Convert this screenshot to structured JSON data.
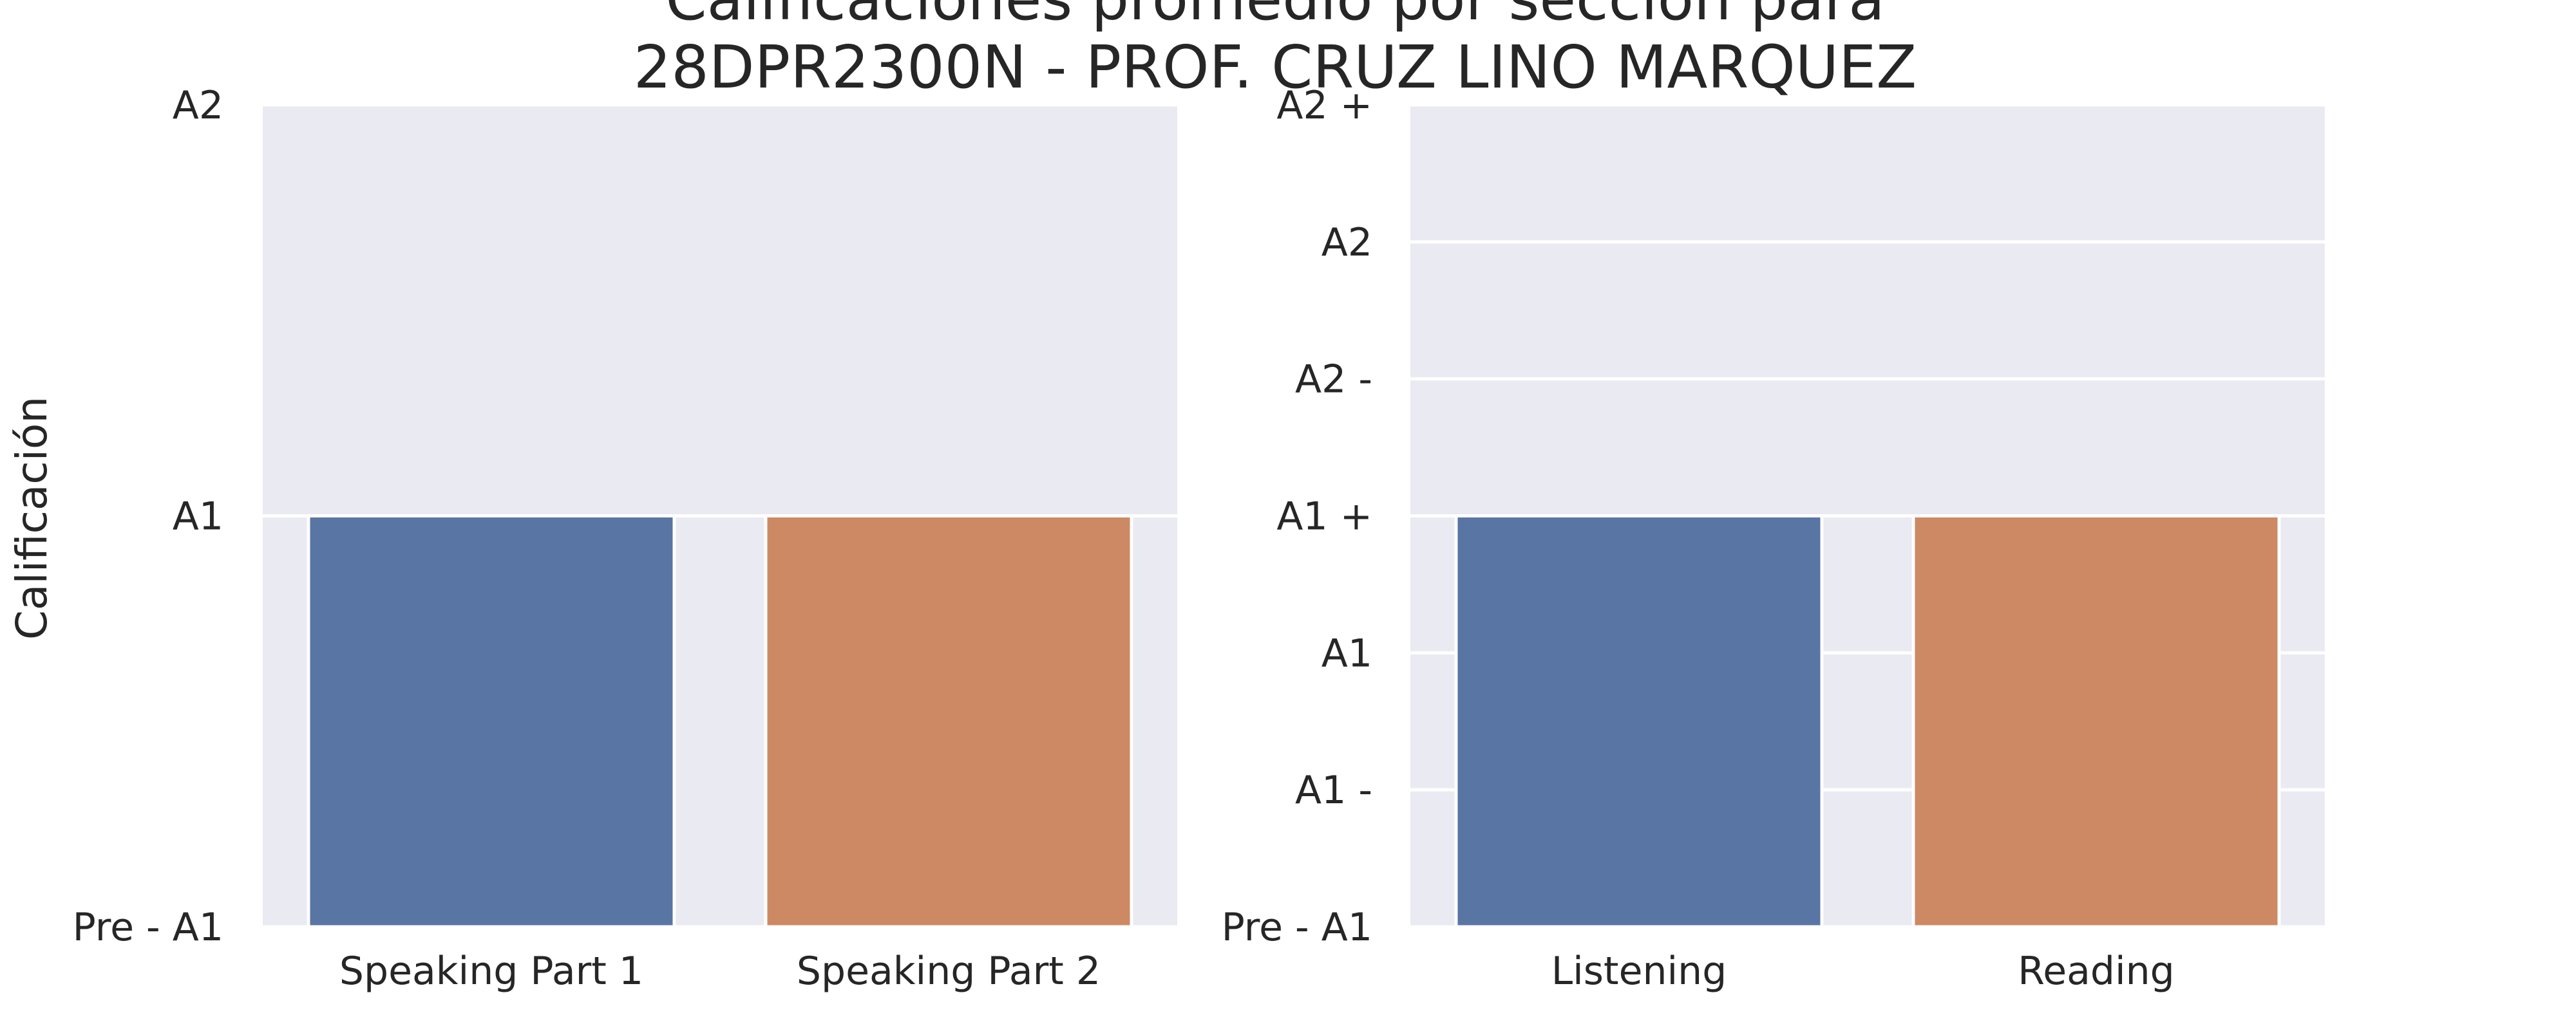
{
  "title_lines": [
    "Calificaciones promedio por sección para",
    "28DPR2300N - PROF. CRUZ LINO MARQUEZ"
  ],
  "colors": {
    "plot_background": "#eaeaf2",
    "grid": "#ffffff",
    "text": "#262626"
  },
  "chart_data": [
    {
      "type": "bar",
      "ylabel": "Calificación",
      "categories": [
        "Speaking Part 1",
        "Speaking Part 2"
      ],
      "values": [
        1,
        1
      ],
      "colors": [
        "#5975a4",
        "#cc8963"
      ],
      "ylim": [
        0,
        2
      ],
      "yticks": [
        0,
        1,
        2
      ],
      "yticklabels": [
        "Pre - A1",
        "A1",
        "A2"
      ],
      "grid": true
    },
    {
      "type": "bar",
      "ylabel": "",
      "categories": [
        "Listening",
        "Reading"
      ],
      "values": [
        3,
        3
      ],
      "colors": [
        "#5975a4",
        "#cc8963"
      ],
      "ylim": [
        0,
        6
      ],
      "yticks": [
        0,
        1,
        2,
        3,
        4,
        5,
        6
      ],
      "yticklabels": [
        "Pre - A1",
        "A1 -",
        "A1",
        "A1 +",
        "A2 -",
        "A2",
        "A2 +"
      ],
      "grid": true
    }
  ]
}
